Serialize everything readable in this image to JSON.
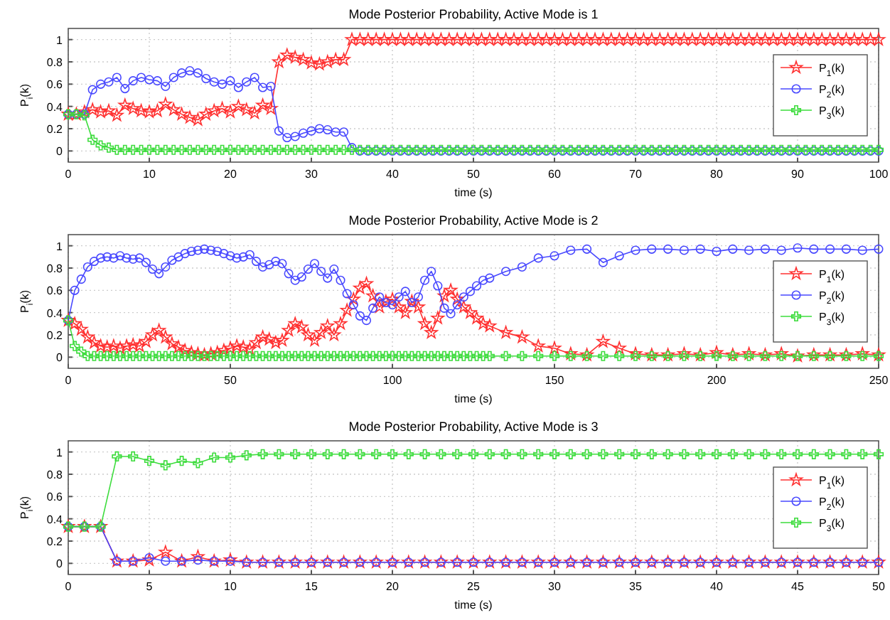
{
  "chart_data": [
    {
      "type": "line",
      "title": "Mode Posterior Probability, Active Mode is 1",
      "xlabel": "time (s)",
      "ylabel": "P$_{i}$(k)",
      "grid": true,
      "legend": "right",
      "xlim": [
        0,
        100
      ],
      "xticks": [
        0,
        10,
        20,
        30,
        40,
        50,
        60,
        70,
        80,
        90,
        100
      ],
      "ylim": [
        -0.1,
        1.1
      ],
      "yticks": [
        0,
        0.2,
        0.4,
        0.6,
        0.8,
        1
      ],
      "x": [
        0,
        1,
        2,
        3,
        4,
        5,
        6,
        7,
        8,
        9,
        10,
        11,
        12,
        13,
        14,
        15,
        16,
        17,
        18,
        19,
        20,
        21,
        22,
        23,
        24,
        25,
        26,
        27,
        28,
        29,
        30,
        31,
        32,
        33,
        34,
        35,
        36,
        37,
        38,
        39,
        40,
        41,
        42,
        43,
        44,
        45,
        46,
        47,
        48,
        49,
        50,
        51,
        52,
        53,
        54,
        55,
        56,
        57,
        58,
        59,
        60,
        61,
        62,
        63,
        64,
        65,
        66,
        67,
        68,
        69,
        70,
        71,
        72,
        73,
        74,
        75,
        76,
        77,
        78,
        79,
        80,
        81,
        82,
        83,
        84,
        85,
        86,
        87,
        88,
        89,
        90,
        91,
        92,
        93,
        94,
        95,
        96,
        97,
        98,
        99,
        100
      ],
      "series": [
        {
          "name": "P$_{1}$(k)",
          "color": "#ff3030",
          "marker": "star",
          "values": [
            0.33,
            0.33,
            0.35,
            0.37,
            0.35,
            0.36,
            0.32,
            0.41,
            0.38,
            0.36,
            0.35,
            0.36,
            0.42,
            0.37,
            0.33,
            0.3,
            0.28,
            0.33,
            0.36,
            0.38,
            0.35,
            0.4,
            0.37,
            0.34,
            0.41,
            0.38,
            0.8,
            0.86,
            0.84,
            0.82,
            0.79,
            0.78,
            0.8,
            0.82,
            0.82,
            1,
            1,
            1,
            1,
            1,
            1,
            1,
            1,
            1,
            1,
            1,
            1,
            1,
            1,
            1,
            1,
            1,
            1,
            1,
            1,
            1,
            1,
            1,
            1,
            1,
            1,
            1,
            1,
            1,
            1,
            1,
            1,
            1,
            1,
            1,
            1,
            1,
            1,
            1,
            1,
            1,
            1,
            1,
            1,
            1,
            1,
            1,
            1,
            1,
            1,
            1,
            1,
            1,
            1,
            1,
            1,
            1,
            1,
            1,
            1,
            1,
            1,
            1,
            1,
            1,
            1
          ]
        },
        {
          "name": "P$_{2}$(k)",
          "color": "#4848ff",
          "marker": "circle",
          "values": [
            0.33,
            0.33,
            0.33,
            0.55,
            0.6,
            0.62,
            0.66,
            0.56,
            0.63,
            0.66,
            0.64,
            0.63,
            0.58,
            0.66,
            0.7,
            0.72,
            0.7,
            0.65,
            0.62,
            0.6,
            0.63,
            0.57,
            0.62,
            0.66,
            0.57,
            0.58,
            0.18,
            0.12,
            0.13,
            0.16,
            0.18,
            0.2,
            0.19,
            0.17,
            0.17,
            0.03,
            0,
            0,
            0,
            0,
            0,
            0,
            0,
            0,
            0,
            0,
            0,
            0,
            0,
            0,
            0,
            0,
            0,
            0,
            0,
            0,
            0,
            0,
            0,
            0,
            0,
            0,
            0,
            0,
            0,
            0,
            0,
            0,
            0,
            0,
            0,
            0,
            0,
            0,
            0,
            0,
            0,
            0,
            0,
            0,
            0,
            0,
            0,
            0,
            0,
            0,
            0,
            0,
            0,
            0,
            0,
            0,
            0,
            0,
            0,
            0,
            0,
            0,
            0,
            0,
            0
          ]
        },
        {
          "name": "P$_{3}$(k)",
          "color": "#3cdc3c",
          "marker": "cross",
          "values": [
            0.33,
            0.33,
            0.32,
            0.1,
            0.05,
            0.03,
            0.01,
            0.01,
            0.01,
            0.01,
            0.01,
            0.01,
            0.01,
            0.01,
            0.01,
            0.01,
            0.01,
            0.01,
            0.01,
            0.01,
            0.01,
            0.01,
            0.01,
            0.01,
            0.01,
            0.01,
            0.01,
            0.01,
            0.01,
            0.01,
            0.01,
            0.01,
            0.01,
            0.01,
            0.01,
            0.01,
            0.01,
            0.01,
            0.01,
            0.01,
            0.01,
            0.01,
            0.01,
            0.01,
            0.01,
            0.01,
            0.01,
            0.01,
            0.01,
            0.01,
            0.01,
            0.01,
            0.01,
            0.01,
            0.01,
            0.01,
            0.01,
            0.01,
            0.01,
            0.01,
            0.01,
            0.01,
            0.01,
            0.01,
            0.01,
            0.01,
            0.01,
            0.01,
            0.01,
            0.01,
            0.01,
            0.01,
            0.01,
            0.01,
            0.01,
            0.01,
            0.01,
            0.01,
            0.01,
            0.01,
            0.01,
            0.01,
            0.01,
            0.01,
            0.01,
            0.01,
            0.01,
            0.01,
            0.01,
            0.01,
            0.01,
            0.01,
            0.01,
            0.01,
            0.01,
            0.01,
            0.01,
            0.01,
            0.01,
            0.01,
            0.01
          ]
        }
      ]
    },
    {
      "type": "line",
      "title": "Mode Posterior Probability, Active Mode is 2",
      "xlabel": "time (s)",
      "ylabel": "P$_{i}$(k)",
      "grid": true,
      "legend": "right",
      "xlim": [
        0,
        250
      ],
      "xticks": [
        0,
        50,
        100,
        150,
        200,
        250
      ],
      "ylim": [
        -0.1,
        1.1
      ],
      "yticks": [
        0,
        0.2,
        0.4,
        0.6,
        0.8,
        1
      ],
      "x": [
        0,
        2,
        4,
        6,
        8,
        10,
        12,
        14,
        16,
        18,
        20,
        22,
        24,
        26,
        28,
        30,
        32,
        34,
        36,
        38,
        40,
        42,
        44,
        46,
        48,
        50,
        52,
        54,
        56,
        58,
        60,
        62,
        64,
        66,
        68,
        70,
        72,
        74,
        76,
        78,
        80,
        82,
        84,
        86,
        88,
        90,
        92,
        94,
        96,
        98,
        100,
        102,
        104,
        106,
        108,
        110,
        112,
        114,
        116,
        118,
        120,
        122,
        124,
        126,
        128,
        130,
        135,
        140,
        145,
        150,
        155,
        160,
        165,
        170,
        175,
        180,
        185,
        190,
        195,
        200,
        205,
        210,
        215,
        220,
        225,
        230,
        235,
        240,
        245,
        250
      ],
      "series": [
        {
          "name": "P$_{1}$(k)",
          "color": "#ff3030",
          "marker": "star",
          "values": [
            0.33,
            0.3,
            0.25,
            0.18,
            0.13,
            0.1,
            0.09,
            0.1,
            0.08,
            0.1,
            0.11,
            0.1,
            0.14,
            0.2,
            0.24,
            0.18,
            0.12,
            0.09,
            0.06,
            0.04,
            0.03,
            0.02,
            0.03,
            0.04,
            0.06,
            0.08,
            0.1,
            0.09,
            0.07,
            0.13,
            0.18,
            0.16,
            0.13,
            0.15,
            0.24,
            0.3,
            0.27,
            0.2,
            0.15,
            0.22,
            0.28,
            0.2,
            0.3,
            0.42,
            0.52,
            0.62,
            0.66,
            0.55,
            0.45,
            0.5,
            0.52,
            0.45,
            0.4,
            0.5,
            0.45,
            0.3,
            0.22,
            0.35,
            0.55,
            0.6,
            0.52,
            0.45,
            0.4,
            0.35,
            0.3,
            0.28,
            0.22,
            0.18,
            0.1,
            0.08,
            0.03,
            0.02,
            0.14,
            0.08,
            0.03,
            0.02,
            0.02,
            0.03,
            0.02,
            0.04,
            0.02,
            0.03,
            0.02,
            0.03,
            0.01,
            0.02,
            0.02,
            0.02,
            0.03,
            0.02
          ]
        },
        {
          "name": "P$_{2}$(k)",
          "color": "#4848ff",
          "marker": "circle",
          "values": [
            0.33,
            0.6,
            0.7,
            0.81,
            0.86,
            0.89,
            0.9,
            0.89,
            0.91,
            0.89,
            0.88,
            0.89,
            0.85,
            0.79,
            0.75,
            0.81,
            0.87,
            0.9,
            0.93,
            0.95,
            0.96,
            0.97,
            0.96,
            0.95,
            0.93,
            0.91,
            0.89,
            0.9,
            0.92,
            0.86,
            0.81,
            0.83,
            0.86,
            0.84,
            0.75,
            0.69,
            0.72,
            0.79,
            0.84,
            0.77,
            0.71,
            0.79,
            0.69,
            0.57,
            0.47,
            0.37,
            0.33,
            0.44,
            0.54,
            0.49,
            0.47,
            0.54,
            0.59,
            0.49,
            0.54,
            0.69,
            0.77,
            0.64,
            0.44,
            0.39,
            0.47,
            0.54,
            0.59,
            0.64,
            0.69,
            0.71,
            0.77,
            0.81,
            0.89,
            0.91,
            0.96,
            0.97,
            0.85,
            0.91,
            0.96,
            0.97,
            0.97,
            0.96,
            0.97,
            0.95,
            0.97,
            0.96,
            0.97,
            0.96,
            0.98,
            0.97,
            0.97,
            0.97,
            0.96,
            0.97
          ]
        },
        {
          "name": "P$_{3}$(k)",
          "color": "#3cdc3c",
          "marker": "cross",
          "values": [
            0.33,
            0.1,
            0.05,
            0.01,
            0.01,
            0.01,
            0.01,
            0.01,
            0.01,
            0.01,
            0.01,
            0.01,
            0.01,
            0.01,
            0.01,
            0.01,
            0.01,
            0.01,
            0.01,
            0.01,
            0.01,
            0.01,
            0.01,
            0.01,
            0.01,
            0.01,
            0.01,
            0.01,
            0.01,
            0.01,
            0.01,
            0.01,
            0.01,
            0.01,
            0.01,
            0.01,
            0.01,
            0.01,
            0.01,
            0.01,
            0.01,
            0.01,
            0.01,
            0.01,
            0.01,
            0.01,
            0.01,
            0.01,
            0.01,
            0.01,
            0.01,
            0.01,
            0.01,
            0.01,
            0.01,
            0.01,
            0.01,
            0.01,
            0.01,
            0.01,
            0.01,
            0.01,
            0.01,
            0.01,
            0.01,
            0.01,
            0.01,
            0.01,
            0.01,
            0.01,
            0.01,
            0.01,
            0.01,
            0.01,
            0.01,
            0.01,
            0.01,
            0.01,
            0.01,
            0.01,
            0.01,
            0.01,
            0.01,
            0.01,
            0.01,
            0.01,
            0.01,
            0.01,
            0.01,
            0.01
          ]
        }
      ]
    },
    {
      "type": "line",
      "title": "Mode Posterior Probability, Active Mode is 3",
      "xlabel": "time (s)",
      "ylabel": "P$_{i}$(k)",
      "grid": true,
      "legend": "right",
      "xlim": [
        0,
        50
      ],
      "xticks": [
        0,
        5,
        10,
        15,
        20,
        25,
        30,
        35,
        40,
        45,
        50
      ],
      "ylim": [
        -0.1,
        1.1
      ],
      "yticks": [
        0,
        0.2,
        0.4,
        0.6,
        0.8,
        1
      ],
      "x": [
        0,
        1,
        2,
        3,
        4,
        5,
        6,
        7,
        8,
        9,
        10,
        11,
        12,
        13,
        14,
        15,
        16,
        17,
        18,
        19,
        20,
        21,
        22,
        23,
        24,
        25,
        26,
        27,
        28,
        29,
        30,
        31,
        32,
        33,
        34,
        35,
        36,
        37,
        38,
        39,
        40,
        41,
        42,
        43,
        44,
        45,
        46,
        47,
        48,
        49,
        50
      ],
      "series": [
        {
          "name": "P$_{1}$(k)",
          "color": "#ff3030",
          "marker": "star",
          "values": [
            0.33,
            0.33,
            0.33,
            0.02,
            0.02,
            0.03,
            0.1,
            0.02,
            0.06,
            0.02,
            0.03,
            0.01,
            0.01,
            0.01,
            0.01,
            0.01,
            0.01,
            0.01,
            0.01,
            0.01,
            0.01,
            0.01,
            0.01,
            0.01,
            0.01,
            0.01,
            0.01,
            0.01,
            0.01,
            0.01,
            0.01,
            0.01,
            0.01,
            0.01,
            0.01,
            0.01,
            0.01,
            0.01,
            0.01,
            0.01,
            0.01,
            0.01,
            0.01,
            0.01,
            0.01,
            0.01,
            0.01,
            0.01,
            0.01,
            0.01,
            0.01
          ]
        },
        {
          "name": "P$_{2}$(k)",
          "color": "#4848ff",
          "marker": "circle",
          "values": [
            0.33,
            0.33,
            0.33,
            0.02,
            0.02,
            0.05,
            0.02,
            0.02,
            0.03,
            0.02,
            0.02,
            0.01,
            0.01,
            0.01,
            0.01,
            0.01,
            0.01,
            0.01,
            0.01,
            0.01,
            0.01,
            0.01,
            0.01,
            0.01,
            0.01,
            0.01,
            0.01,
            0.01,
            0.01,
            0.01,
            0.01,
            0.01,
            0.01,
            0.01,
            0.01,
            0.01,
            0.01,
            0.01,
            0.01,
            0.01,
            0.01,
            0.01,
            0.01,
            0.01,
            0.01,
            0.01,
            0.01,
            0.01,
            0.01,
            0.01,
            0.01
          ]
        },
        {
          "name": "P$_{3}$(k)",
          "color": "#3cdc3c",
          "marker": "cross",
          "values": [
            0.33,
            0.33,
            0.33,
            0.96,
            0.96,
            0.92,
            0.88,
            0.92,
            0.9,
            0.95,
            0.95,
            0.97,
            0.98,
            0.98,
            0.98,
            0.98,
            0.98,
            0.98,
            0.98,
            0.98,
            0.98,
            0.98,
            0.98,
            0.98,
            0.98,
            0.98,
            0.98,
            0.98,
            0.98,
            0.98,
            0.98,
            0.98,
            0.98,
            0.98,
            0.98,
            0.98,
            0.98,
            0.98,
            0.98,
            0.98,
            0.98,
            0.98,
            0.98,
            0.98,
            0.98,
            0.98,
            0.98,
            0.98,
            0.98,
            0.98,
            0.98
          ]
        }
      ]
    }
  ]
}
